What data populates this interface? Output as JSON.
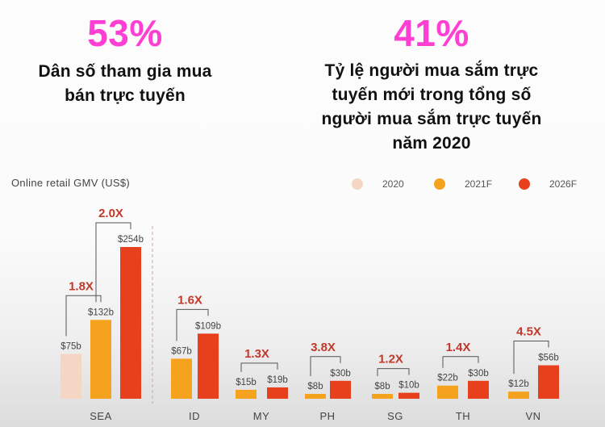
{
  "stats": [
    {
      "value": "53%",
      "desc_lines": [
        "Dân số tham gia mua",
        "bán trực tuyến"
      ]
    },
    {
      "value": "41%",
      "desc_lines": [
        "Tỷ lệ người mua sắm trực",
        "tuyến mới trong tổng số",
        "người mua sắm trực tuyến",
        "năm 2020"
      ]
    }
  ],
  "chart_data": {
    "type": "bar",
    "title": "Online retail GMV (US$)",
    "categories": [
      "SEA",
      "ID",
      "MY",
      "PH",
      "SG",
      "TH",
      "VN"
    ],
    "series": [
      {
        "name": "2020",
        "color": "#f5d6c4",
        "values": [
          75,
          null,
          null,
          null,
          null,
          null,
          null
        ],
        "labels": [
          "$75b",
          "",
          "",
          "",
          "",
          "",
          ""
        ]
      },
      {
        "name": "2021F",
        "color": "#f5a21e",
        "values": [
          132,
          67,
          15,
          8,
          8,
          22,
          12
        ],
        "labels": [
          "$132b",
          "$67b",
          "$15b",
          "$8b",
          "$8b",
          "$22b",
          "$12b"
        ]
      },
      {
        "name": "2026F",
        "color": "#e8401c",
        "values": [
          254,
          109,
          19,
          30,
          10,
          30,
          56
        ],
        "labels": [
          "$254b",
          "$109b",
          "$19b",
          "$30b",
          "$10b",
          "$30b",
          "$56b"
        ]
      }
    ],
    "multipliers": [
      {
        "category": "SEA",
        "from": "2020",
        "to": "2021F",
        "label": "1.8X"
      },
      {
        "category": "SEA",
        "from": "2021F",
        "to": "2026F",
        "label": "2.0X"
      },
      {
        "category": "ID",
        "from": "2021F",
        "to": "2026F",
        "label": "1.6X"
      },
      {
        "category": "MY",
        "from": "2021F",
        "to": "2026F",
        "label": "1.3X"
      },
      {
        "category": "PH",
        "from": "2021F",
        "to": "2026F",
        "label": "3.8X"
      },
      {
        "category": "SG",
        "from": "2021F",
        "to": "2026F",
        "label": "1.2X"
      },
      {
        "category": "TH",
        "from": "2021F",
        "to": "2026F",
        "label": "1.4X"
      },
      {
        "category": "VN",
        "from": "2021F",
        "to": "2026F",
        "label": "4.5X"
      }
    ],
    "multiplier_color": "#c0392b",
    "divider_after": "SEA",
    "ylim": [
      0,
      254
    ]
  }
}
